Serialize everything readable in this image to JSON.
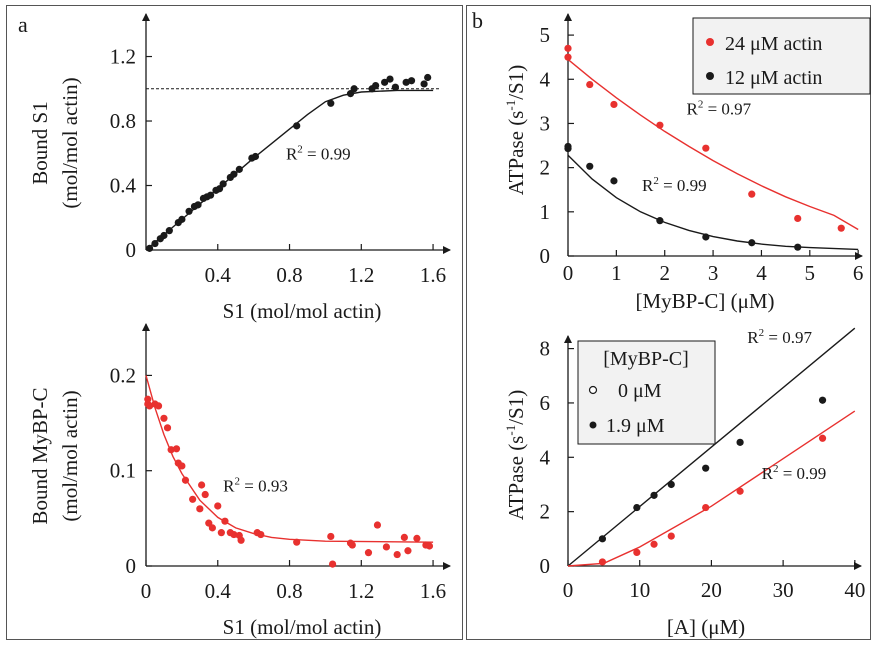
{
  "panel_letters": [
    "a",
    "b"
  ],
  "colors": {
    "red": "#e8312f",
    "black": "#1a1a1a",
    "legend_bg": "#f2f2f2"
  },
  "chart_data": [
    {
      "id": "a_top",
      "type": "scatter",
      "xlabel": "S1 (mol/mol actin)",
      "ylabel": [
        "Bound S1",
        "(mol/mol actin)"
      ],
      "xlim": [
        0,
        1.7
      ],
      "ylim": [
        0,
        1.47
      ],
      "xticks": [
        0.4,
        0.8,
        1.2,
        1.6
      ],
      "xtick_labels": [
        "0.4",
        "0.8",
        "1.2",
        "1.6"
      ],
      "yticks": [
        0,
        0.4,
        0.8,
        1.2
      ],
      "ytick_labels": [
        "0",
        "0.4",
        "0.8",
        "1.2"
      ],
      "reference_line": {
        "y": 1.0,
        "style": "dashed"
      },
      "annotations": [
        {
          "text": "R",
          "sup": "2",
          "rest": " = 0.99",
          "x": 0.78,
          "y": 0.56
        }
      ],
      "series": [
        {
          "color": "#1a1a1a",
          "points": [
            [
              0.02,
              0.01
            ],
            [
              0.05,
              0.04
            ],
            [
              0.08,
              0.07
            ],
            [
              0.1,
              0.09
            ],
            [
              0.13,
              0.12
            ],
            [
              0.18,
              0.17
            ],
            [
              0.2,
              0.19
            ],
            [
              0.24,
              0.24
            ],
            [
              0.27,
              0.27
            ],
            [
              0.29,
              0.28
            ],
            [
              0.32,
              0.32
            ],
            [
              0.34,
              0.33
            ],
            [
              0.36,
              0.34
            ],
            [
              0.39,
              0.37
            ],
            [
              0.41,
              0.38
            ],
            [
              0.43,
              0.41
            ],
            [
              0.47,
              0.45
            ],
            [
              0.49,
              0.47
            ],
            [
              0.52,
              0.5
            ],
            [
              0.59,
              0.57
            ],
            [
              0.61,
              0.58
            ],
            [
              0.84,
              0.77
            ],
            [
              1.03,
              0.91
            ],
            [
              1.14,
              0.97
            ],
            [
              1.16,
              1.0
            ],
            [
              1.26,
              1.0
            ],
            [
              1.28,
              1.02
            ],
            [
              1.33,
              1.04
            ],
            [
              1.36,
              1.06
            ],
            [
              1.39,
              1.01
            ],
            [
              1.45,
              1.04
            ],
            [
              1.48,
              1.05
            ],
            [
              1.55,
              1.03
            ],
            [
              1.57,
              1.07
            ]
          ],
          "fit": [
            [
              0.0,
              0.0
            ],
            [
              0.2,
              0.19
            ],
            [
              0.4,
              0.38
            ],
            [
              0.6,
              0.57
            ],
            [
              0.7,
              0.66
            ],
            [
              0.8,
              0.75
            ],
            [
              0.9,
              0.84
            ],
            [
              1.0,
              0.92
            ],
            [
              1.1,
              0.96
            ],
            [
              1.2,
              0.98
            ],
            [
              1.3,
              0.985
            ],
            [
              1.4,
              0.99
            ],
            [
              1.6,
              0.99
            ]
          ]
        }
      ]
    },
    {
      "id": "a_bottom",
      "type": "scatter",
      "xlabel": "S1 (mol/mol actin)",
      "ylabel": [
        "Bound MyBP-C",
        "(mol/mol actin)"
      ],
      "xlim": [
        0,
        1.7
      ],
      "ylim": [
        0,
        0.255
      ],
      "xticks": [
        0,
        0.4,
        0.8,
        1.2,
        1.6
      ],
      "xtick_labels": [
        "0",
        "0.4",
        "0.8",
        "1.2",
        "1.6"
      ],
      "yticks": [
        0,
        0.1,
        0.2
      ],
      "ytick_labels": [
        "0",
        "0.1",
        "0.2"
      ],
      "annotations": [
        {
          "text": "R",
          "sup": "2",
          "rest": " = 0.93",
          "x": 0.43,
          "y": 0.078
        }
      ],
      "series": [
        {
          "color": "#e8312f",
          "points": [
            [
              0.01,
              0.175
            ],
            [
              0.01,
              0.17
            ],
            [
              0.02,
              0.168
            ],
            [
              0.05,
              0.17
            ],
            [
              0.07,
              0.168
            ],
            [
              0.1,
              0.155
            ],
            [
              0.12,
              0.145
            ],
            [
              0.14,
              0.122
            ],
            [
              0.17,
              0.123
            ],
            [
              0.18,
              0.108
            ],
            [
              0.2,
              0.105
            ],
            [
              0.22,
              0.09
            ],
            [
              0.26,
              0.07
            ],
            [
              0.3,
              0.06
            ],
            [
              0.31,
              0.085
            ],
            [
              0.33,
              0.075
            ],
            [
              0.35,
              0.045
            ],
            [
              0.37,
              0.04
            ],
            [
              0.4,
              0.063
            ],
            [
              0.42,
              0.035
            ],
            [
              0.44,
              0.047
            ],
            [
              0.47,
              0.035
            ],
            [
              0.49,
              0.033
            ],
            [
              0.52,
              0.032
            ],
            [
              0.53,
              0.027
            ],
            [
              0.62,
              0.035
            ],
            [
              0.64,
              0.033
            ],
            [
              0.84,
              0.025
            ],
            [
              1.03,
              0.031
            ],
            [
              1.04,
              0.002
            ],
            [
              1.14,
              0.024
            ],
            [
              1.15,
              0.022
            ],
            [
              1.24,
              0.014
            ],
            [
              1.29,
              0.043
            ],
            [
              1.34,
              0.02
            ],
            [
              1.4,
              0.012
            ],
            [
              1.44,
              0.03
            ],
            [
              1.46,
              0.016
            ],
            [
              1.51,
              0.029
            ],
            [
              1.56,
              0.022
            ],
            [
              1.58,
              0.021
            ]
          ],
          "fit": [
            [
              0.0,
              0.2
            ],
            [
              0.05,
              0.166
            ],
            [
              0.1,
              0.138
            ],
            [
              0.15,
              0.115
            ],
            [
              0.2,
              0.097
            ],
            [
              0.3,
              0.069
            ],
            [
              0.4,
              0.051
            ],
            [
              0.5,
              0.04
            ],
            [
              0.6,
              0.034
            ],
            [
              0.7,
              0.03
            ],
            [
              0.8,
              0.028
            ],
            [
              1.0,
              0.026
            ],
            [
              1.6,
              0.025
            ]
          ]
        }
      ]
    },
    {
      "id": "b_top",
      "type": "scatter",
      "xlabel": "[MyBP-C]  (μM)",
      "ylabel": [
        "ATPase (s",
        "-1",
        "/S1)"
      ],
      "xlim": [
        0,
        6.1
      ],
      "ylim": [
        0,
        5.5
      ],
      "xticks": [
        0,
        1,
        2,
        3,
        4,
        5,
        6
      ],
      "xtick_labels": [
        "0",
        "1",
        "2",
        "3",
        "4",
        "5",
        "6"
      ],
      "yticks": [
        0,
        1,
        2,
        3,
        4,
        5
      ],
      "ytick_labels": [
        "0",
        "1",
        "2",
        "3",
        "4",
        "5"
      ],
      "legend": [
        "24 μM actin",
        "12 μM actin"
      ],
      "annotations": [
        {
          "text": "R",
          "sup": "2",
          "rest": " = 0.97",
          "x": 2.45,
          "y": 3.2
        },
        {
          "text": "R",
          "sup": "2",
          "rest": " = 0.99",
          "x": 1.53,
          "y": 1.47
        }
      ],
      "series": [
        {
          "name": "24 μM actin",
          "color": "#e8312f",
          "points": [
            [
              0.0,
              4.7
            ],
            [
              0.0,
              4.5
            ],
            [
              0.45,
              3.88
            ],
            [
              0.95,
              3.43
            ],
            [
              1.9,
              2.96
            ],
            [
              2.85,
              2.44
            ],
            [
              3.8,
              1.4
            ],
            [
              4.75,
              0.85
            ],
            [
              5.65,
              0.63
            ]
          ],
          "fit": [
            [
              0.0,
              4.45
            ],
            [
              0.5,
              4.0
            ],
            [
              1.0,
              3.58
            ],
            [
              1.5,
              3.19
            ],
            [
              2.0,
              2.82
            ],
            [
              2.5,
              2.48
            ],
            [
              3.0,
              2.16
            ],
            [
              3.5,
              1.86
            ],
            [
              4.0,
              1.59
            ],
            [
              4.5,
              1.34
            ],
            [
              5.0,
              1.12
            ],
            [
              5.5,
              0.92
            ],
            [
              6.0,
              0.6
            ]
          ]
        },
        {
          "name": "12 μM actin",
          "color": "#1a1a1a",
          "points": [
            [
              0.0,
              2.48
            ],
            [
              0.0,
              2.43
            ],
            [
              0.45,
              2.03
            ],
            [
              0.95,
              1.7
            ],
            [
              1.9,
              0.8
            ],
            [
              2.85,
              0.43
            ],
            [
              3.8,
              0.3
            ],
            [
              4.75,
              0.2
            ]
          ],
          "fit": [
            [
              0.0,
              2.28
            ],
            [
              0.5,
              1.74
            ],
            [
              1.0,
              1.32
            ],
            [
              1.5,
              1.0
            ],
            [
              2.0,
              0.76
            ],
            [
              2.5,
              0.58
            ],
            [
              3.0,
              0.44
            ],
            [
              3.5,
              0.34
            ],
            [
              4.0,
              0.27
            ],
            [
              4.5,
              0.22
            ],
            [
              5.0,
              0.19
            ],
            [
              6.0,
              0.15
            ]
          ]
        }
      ]
    },
    {
      "id": "b_bottom",
      "type": "scatter",
      "xlabel": "[A]  (μM)",
      "ylabel": [
        "ATPase (s",
        "-1",
        "/S1)"
      ],
      "xlim": [
        0,
        41
      ],
      "ylim": [
        0,
        8.5
      ],
      "xticks": [
        0,
        10,
        20,
        30,
        40
      ],
      "xtick_labels": [
        "0",
        "10",
        "20",
        "30",
        "40"
      ],
      "yticks": [
        0,
        2,
        4,
        6,
        8
      ],
      "ytick_labels": [
        "0",
        "2",
        "4",
        "6",
        "8"
      ],
      "legend_title": "[MyBP-C]",
      "legend": [
        "0 μM",
        "1.9 μM"
      ],
      "annotations": [
        {
          "text": "R",
          "sup": "2",
          "rest": " = 0.97",
          "x": 25.0,
          "y": 8.2
        },
        {
          "text": "R",
          "sup": "2",
          "rest": " = 0.99",
          "x": 27.0,
          "y": 3.2
        }
      ],
      "series": [
        {
          "color": "#1a1a1a",
          "points": [
            [
              4.8,
              1.0
            ],
            [
              9.6,
              2.15
            ],
            [
              12.0,
              2.6
            ],
            [
              14.4,
              3.0
            ],
            [
              19.2,
              3.6
            ],
            [
              24.0,
              4.55
            ],
            [
              35.5,
              6.1
            ]
          ],
          "fit": [
            [
              0.0,
              0.0
            ],
            [
              40.0,
              8.75
            ]
          ]
        },
        {
          "color": "#e8312f",
          "points": [
            [
              4.8,
              0.15
            ],
            [
              9.6,
              0.5
            ],
            [
              12.0,
              0.8
            ],
            [
              14.4,
              1.1
            ],
            [
              19.2,
              2.15
            ],
            [
              24.0,
              2.75
            ],
            [
              35.5,
              4.7
            ]
          ],
          "fit": [
            [
              0.0,
              0.0
            ],
            [
              5.0,
              0.1
            ],
            [
              10.0,
              0.7
            ],
            [
              20.0,
              2.2
            ],
            [
              30.0,
              3.95
            ],
            [
              40.0,
              5.7
            ]
          ]
        }
      ]
    }
  ]
}
